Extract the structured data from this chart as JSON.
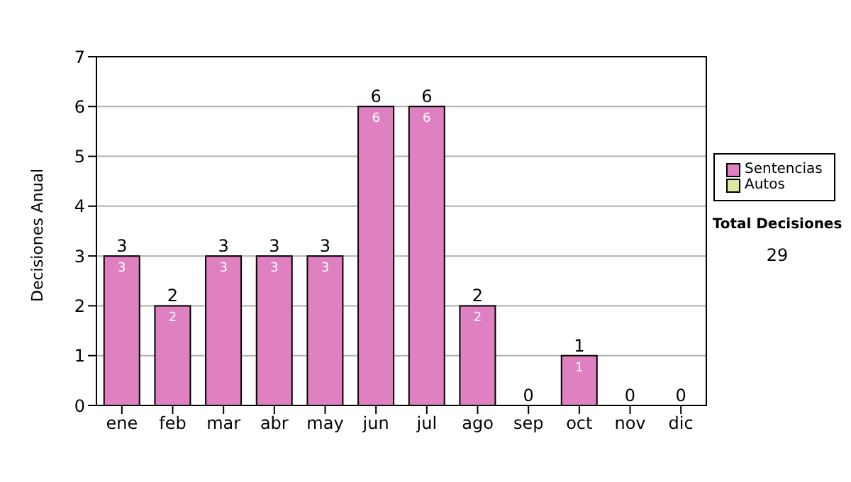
{
  "chart_data": {
    "type": "bar",
    "ylabel": "Decisiones Anual",
    "categories": [
      "ene",
      "feb",
      "mar",
      "abr",
      "may",
      "jun",
      "jul",
      "ago",
      "sep",
      "oct",
      "nov",
      "dic"
    ],
    "series": [
      {
        "name": "Sentencias",
        "color": "#df80c0",
        "values": [
          3,
          2,
          3,
          3,
          3,
          6,
          6,
          2,
          0,
          1,
          0,
          0
        ],
        "value_labels": [
          "3",
          "2",
          "3",
          "3",
          "3",
          "6",
          "6",
          "2",
          null,
          "1",
          null,
          null
        ]
      },
      {
        "name": "Autos",
        "color": "#d8eaa0",
        "values": [
          0,
          0,
          0,
          0,
          0,
          0,
          0,
          0,
          0,
          0,
          0,
          0
        ]
      }
    ],
    "stacked": true,
    "totals": [
      "3",
      "2",
      "3",
      "3",
      "3",
      "6",
      "6",
      "2",
      "0",
      "1",
      "0",
      "0"
    ],
    "ylim": [
      0,
      7
    ],
    "yticks": [
      0,
      1,
      2,
      3,
      4,
      5,
      6,
      7
    ],
    "grid": "y",
    "legend": "right",
    "annotations": [
      "Total Decisiones",
      "29"
    ]
  }
}
